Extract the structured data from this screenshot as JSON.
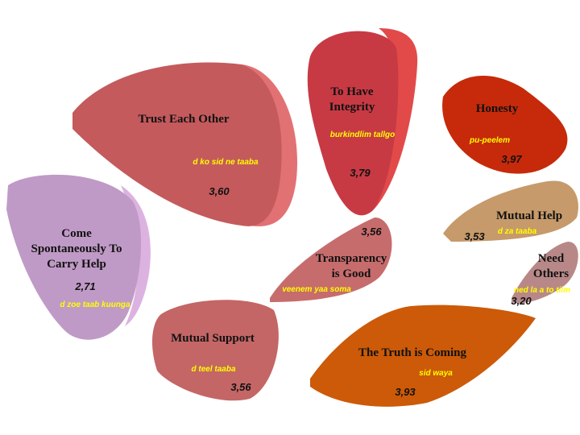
{
  "nodes": [
    {
      "label": [
        "Trust Each Other"
      ],
      "translation": "d ko sid  ne taaba",
      "value": "3,60"
    },
    {
      "label": [
        "To Have",
        "Integrity"
      ],
      "translation": "burkindlim tallgo",
      "value": "3,79"
    },
    {
      "label": [
        "Honesty"
      ],
      "translation": "pu-peelem",
      "value": "3,97"
    },
    {
      "label": [
        "Mutual Help"
      ],
      "translation": "d za taaba",
      "value": "3,53"
    },
    {
      "label": [
        "Need",
        "Others"
      ],
      "translation": "ned la a to tiim",
      "value": "3,20"
    },
    {
      "label": [
        "Come",
        "Spontaneously To",
        "Carry Help"
      ],
      "translation": "d zoe taab kuunga",
      "value": "2,71"
    },
    {
      "label": [
        "Transparency",
        "is Good"
      ],
      "translation": "veenem yaa soma",
      "value": "3,56"
    },
    {
      "label": [
        "Mutual Support"
      ],
      "translation": "d teel taaba",
      "value": "3,56"
    },
    {
      "label": [
        "The Truth is Coming"
      ],
      "translation": "sid waya",
      "value": "3,93"
    }
  ]
}
